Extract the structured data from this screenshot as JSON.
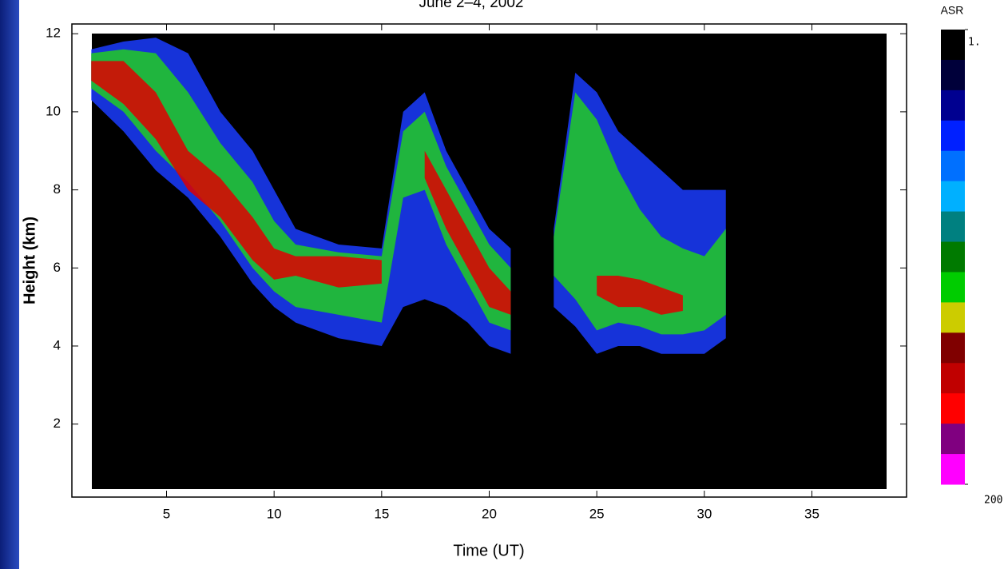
{
  "chart_data": {
    "type": "layers",
    "title": "June 2–4, 2002",
    "xlabel": "Time (UT)",
    "ylabel": "Height (km)",
    "xlim": [
      0.6,
      39.4
    ],
    "ylim": [
      0.13,
      12.25
    ],
    "xticks": [
      5,
      10,
      15,
      20,
      25,
      30,
      35
    ],
    "yticks": [
      2,
      4,
      6,
      8,
      10,
      12
    ],
    "x": [
      1.5,
      3,
      4.5,
      6,
      7.5,
      9,
      10,
      11,
      13,
      15,
      16,
      17,
      18,
      19,
      20,
      21,
      22,
      23,
      24,
      25,
      26,
      27,
      28,
      29,
      30,
      31
    ],
    "layers": [
      {
        "color": "#1a3cff",
        "top": [
          11.6,
          11.8,
          11.9,
          11.5,
          10,
          9,
          8,
          7,
          6.6,
          6.5,
          10,
          10.5,
          9,
          8,
          7,
          6.5,
          null,
          7,
          11,
          10.5,
          9.5,
          9,
          8.5,
          8,
          8,
          8
        ],
        "base": [
          10.3,
          9.5,
          8.5,
          7.8,
          6.8,
          5.6,
          5,
          4.6,
          4.2,
          4,
          5,
          5.2,
          5,
          4.6,
          4,
          3.8,
          null,
          5,
          4.5,
          3.8,
          4,
          4,
          3.8,
          3.8,
          3.8,
          4.2
        ]
      },
      {
        "color": "#22cc22",
        "top": [
          11.5,
          11.6,
          11.5,
          10.5,
          9.2,
          8.2,
          7.2,
          6.6,
          6.4,
          6.3,
          9.5,
          10,
          8.6,
          7.6,
          6.6,
          6,
          null,
          6.8,
          10.5,
          9.8,
          8.5,
          7.5,
          6.8,
          6.5,
          6.3,
          7
        ],
        "base": [
          10.6,
          10,
          9,
          8.2,
          7.2,
          6,
          5.4,
          5,
          4.8,
          4.6,
          7.8,
          8,
          6.6,
          5.6,
          4.6,
          4.4,
          null,
          5.8,
          5.2,
          4.4,
          4.6,
          4.5,
          4.3,
          4.3,
          4.4,
          4.8
        ]
      },
      {
        "color": "#e00000",
        "top": [
          11.3,
          11.3,
          10.5,
          9,
          8.3,
          7.3,
          6.5,
          6.3,
          6.3,
          6.2,
          null,
          9,
          8,
          7,
          6,
          5.4,
          null,
          null,
          null,
          5.8,
          5.8,
          5.7,
          5.5,
          5.3,
          null,
          null
        ],
        "base": [
          10.8,
          10.2,
          9.3,
          8,
          7.3,
          6.2,
          5.7,
          5.8,
          5.5,
          5.6,
          null,
          8.3,
          7,
          6,
          5,
          4.8,
          null,
          null,
          null,
          5.3,
          5,
          5,
          4.8,
          4.9,
          null,
          null
        ]
      }
    ],
    "colorbar": {
      "label": "ASR",
      "colors": [
        "#000000",
        "#00003a",
        "#000090",
        "#0020ff",
        "#0070ff",
        "#00b0ff",
        "#008080",
        "#007a00",
        "#00cc00",
        "#cccc00",
        "#800000",
        "#c00000",
        "#ff0000",
        "#800080",
        "#ff00ff"
      ],
      "ticks": [
        {
          "value": 1,
          "label": "1."
        },
        {
          "value": 200,
          "label": "200."
        }
      ]
    }
  }
}
